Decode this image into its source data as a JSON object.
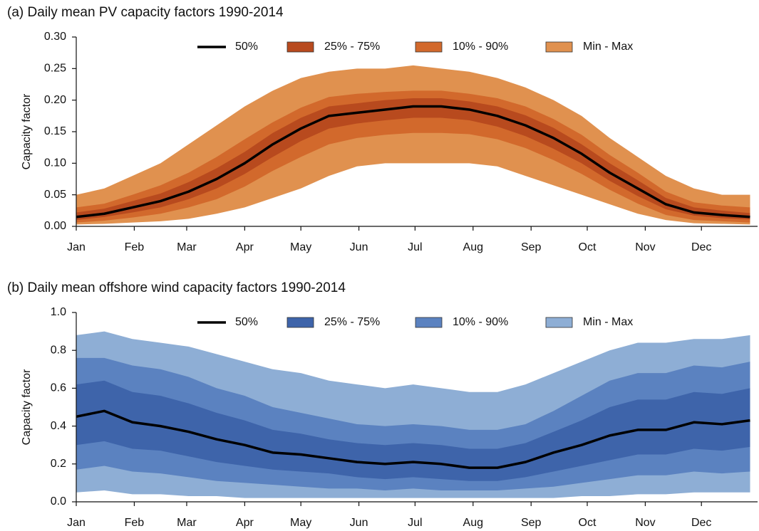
{
  "chart_data": [
    {
      "type": "area",
      "title": "(a) Daily mean PV capacity factors 1990-2014",
      "y_label": "Capacity factor",
      "x": [
        1,
        16,
        31,
        46,
        61,
        76,
        91,
        106,
        121,
        136,
        151,
        166,
        181,
        196,
        211,
        226,
        241,
        256,
        271,
        286,
        301,
        316,
        331,
        346,
        361
      ],
      "xlim": [
        1,
        365
      ],
      "xticks": [
        {
          "value": 1,
          "label": "Jan"
        },
        {
          "value": 32,
          "label": "Feb"
        },
        {
          "value": 60,
          "label": "Mar"
        },
        {
          "value": 91,
          "label": "Apr"
        },
        {
          "value": 121,
          "label": "May"
        },
        {
          "value": 152,
          "label": "Jun"
        },
        {
          "value": 182,
          "label": "Jul"
        },
        {
          "value": 213,
          "label": "Aug"
        },
        {
          "value": 244,
          "label": "Sep"
        },
        {
          "value": 274,
          "label": "Oct"
        },
        {
          "value": 305,
          "label": "Nov"
        },
        {
          "value": 335,
          "label": "Dec"
        }
      ],
      "ylim": [
        0,
        0.3
      ],
      "yticks": [
        {
          "value": 0,
          "label": "0.00"
        },
        0.05,
        {
          "value": 0.1,
          "label": "0.10"
        },
        0.15,
        {
          "value": 0.2,
          "label": "0.20"
        },
        0.25,
        {
          "value": 0.3,
          "label": "0.30"
        }
      ],
      "legend": "upper center",
      "series": [
        {
          "name": "50%",
          "color": "#000000",
          "values": [
            0.015,
            0.02,
            0.03,
            0.04,
            0.055,
            0.075,
            0.1,
            0.13,
            0.155,
            0.175,
            0.18,
            0.185,
            0.19,
            0.19,
            0.185,
            0.175,
            0.16,
            0.14,
            0.115,
            0.085,
            0.06,
            0.035,
            0.022,
            0.018,
            0.015
          ]
        },
        {
          "name": "25% - 75%",
          "color": "#b84a1e",
          "low": [
            0.01,
            0.015,
            0.022,
            0.03,
            0.043,
            0.06,
            0.083,
            0.11,
            0.135,
            0.155,
            0.163,
            0.168,
            0.172,
            0.172,
            0.168,
            0.158,
            0.143,
            0.123,
            0.1,
            0.072,
            0.048,
            0.027,
            0.017,
            0.013,
            0.011
          ],
          "high": [
            0.022,
            0.028,
            0.04,
            0.052,
            0.07,
            0.092,
            0.118,
            0.148,
            0.172,
            0.19,
            0.195,
            0.2,
            0.203,
            0.203,
            0.198,
            0.19,
            0.176,
            0.156,
            0.13,
            0.1,
            0.073,
            0.045,
            0.03,
            0.025,
            0.021
          ]
        },
        {
          "name": "10% - 90%",
          "color": "#d2692c",
          "low": [
            0.006,
            0.009,
            0.014,
            0.02,
            0.03,
            0.043,
            0.063,
            0.088,
            0.11,
            0.13,
            0.14,
            0.145,
            0.148,
            0.148,
            0.146,
            0.138,
            0.124,
            0.105,
            0.083,
            0.058,
            0.036,
            0.018,
            0.01,
            0.008,
            0.006
          ],
          "high": [
            0.03,
            0.036,
            0.05,
            0.065,
            0.085,
            0.11,
            0.138,
            0.165,
            0.188,
            0.205,
            0.21,
            0.213,
            0.215,
            0.215,
            0.21,
            0.203,
            0.19,
            0.17,
            0.145,
            0.113,
            0.085,
            0.055,
            0.038,
            0.033,
            0.03
          ]
        },
        {
          "name": "Min - Max",
          "color": "#e0914f",
          "low": [
            0.003,
            0.004,
            0.006,
            0.008,
            0.012,
            0.02,
            0.03,
            0.045,
            0.06,
            0.08,
            0.095,
            0.1,
            0.1,
            0.1,
            0.1,
            0.095,
            0.08,
            0.065,
            0.05,
            0.035,
            0.02,
            0.01,
            0.005,
            0.004,
            0.003
          ],
          "high": [
            0.05,
            0.06,
            0.08,
            0.1,
            0.13,
            0.16,
            0.19,
            0.215,
            0.235,
            0.245,
            0.25,
            0.25,
            0.255,
            0.25,
            0.245,
            0.235,
            0.22,
            0.2,
            0.175,
            0.14,
            0.11,
            0.08,
            0.06,
            0.05,
            0.05
          ]
        }
      ]
    },
    {
      "type": "area",
      "title": "(b) Daily mean offshore wind capacity factors 1990-2014",
      "y_label": "Capacity factor",
      "x": [
        1,
        16,
        31,
        46,
        61,
        76,
        91,
        106,
        121,
        136,
        151,
        166,
        181,
        196,
        211,
        226,
        241,
        256,
        271,
        286,
        301,
        316,
        331,
        346,
        361
      ],
      "xlim": [
        1,
        365
      ],
      "xticks": [
        {
          "value": 1,
          "label": "Jan"
        },
        {
          "value": 32,
          "label": "Feb"
        },
        {
          "value": 60,
          "label": "Mar"
        },
        {
          "value": 91,
          "label": "Apr"
        },
        {
          "value": 121,
          "label": "May"
        },
        {
          "value": 152,
          "label": "Jun"
        },
        {
          "value": 182,
          "label": "Jul"
        },
        {
          "value": 213,
          "label": "Aug"
        },
        {
          "value": 244,
          "label": "Sep"
        },
        {
          "value": 274,
          "label": "Oct"
        },
        {
          "value": 305,
          "label": "Nov"
        },
        {
          "value": 335,
          "label": "Dec"
        }
      ],
      "ylim": [
        0,
        1
      ],
      "yticks": [
        {
          "value": 0,
          "label": "0.0"
        },
        0.2,
        0.4,
        0.6,
        0.8,
        {
          "value": 1,
          "label": "1.0"
        }
      ],
      "legend": "upper center",
      "series": [
        {
          "name": "50%",
          "color": "#000000",
          "values": [
            0.45,
            0.48,
            0.42,
            0.4,
            0.37,
            0.33,
            0.3,
            0.26,
            0.25,
            0.23,
            0.21,
            0.2,
            0.21,
            0.2,
            0.18,
            0.18,
            0.21,
            0.26,
            0.3,
            0.35,
            0.38,
            0.38,
            0.42,
            0.41,
            0.43
          ]
        },
        {
          "name": "25% - 75%",
          "color": "#3e64aa",
          "low": [
            0.3,
            0.32,
            0.28,
            0.27,
            0.24,
            0.21,
            0.19,
            0.17,
            0.16,
            0.15,
            0.13,
            0.12,
            0.13,
            0.12,
            0.11,
            0.11,
            0.13,
            0.16,
            0.19,
            0.22,
            0.25,
            0.25,
            0.28,
            0.27,
            0.29
          ],
          "high": [
            0.62,
            0.64,
            0.58,
            0.56,
            0.52,
            0.47,
            0.43,
            0.38,
            0.36,
            0.33,
            0.31,
            0.3,
            0.31,
            0.3,
            0.28,
            0.28,
            0.31,
            0.37,
            0.43,
            0.5,
            0.54,
            0.54,
            0.58,
            0.57,
            0.6
          ]
        },
        {
          "name": "10% - 90%",
          "color": "#5b82c0",
          "low": [
            0.17,
            0.19,
            0.16,
            0.15,
            0.13,
            0.11,
            0.1,
            0.09,
            0.08,
            0.07,
            0.07,
            0.06,
            0.07,
            0.06,
            0.06,
            0.06,
            0.07,
            0.08,
            0.1,
            0.12,
            0.14,
            0.14,
            0.16,
            0.15,
            0.16
          ],
          "high": [
            0.76,
            0.76,
            0.72,
            0.7,
            0.66,
            0.6,
            0.56,
            0.5,
            0.47,
            0.44,
            0.41,
            0.4,
            0.41,
            0.4,
            0.38,
            0.38,
            0.41,
            0.48,
            0.56,
            0.64,
            0.68,
            0.68,
            0.72,
            0.71,
            0.74
          ]
        },
        {
          "name": "Min - Max",
          "color": "#8eaed5",
          "low": [
            0.05,
            0.06,
            0.04,
            0.04,
            0.03,
            0.03,
            0.02,
            0.02,
            0.02,
            0.02,
            0.02,
            0.02,
            0.02,
            0.02,
            0.02,
            0.02,
            0.02,
            0.02,
            0.03,
            0.03,
            0.04,
            0.04,
            0.05,
            0.05,
            0.05
          ],
          "high": [
            0.88,
            0.9,
            0.86,
            0.84,
            0.82,
            0.78,
            0.74,
            0.7,
            0.68,
            0.64,
            0.62,
            0.6,
            0.62,
            0.6,
            0.58,
            0.58,
            0.62,
            0.68,
            0.74,
            0.8,
            0.84,
            0.84,
            0.86,
            0.86,
            0.88
          ]
        }
      ]
    }
  ]
}
